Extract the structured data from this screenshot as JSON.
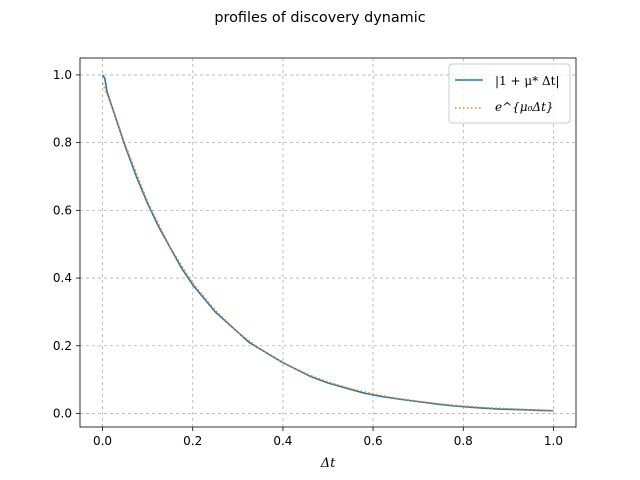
{
  "chart_data": {
    "type": "line",
    "title": "profiles of discovery dynamic",
    "xlabel": "Δt",
    "ylabel": "",
    "xlim": [
      -0.05,
      1.05
    ],
    "ylim": [
      -0.04,
      1.05
    ],
    "xticks": [
      0.0,
      0.2,
      0.4,
      0.6,
      0.8,
      1.0
    ],
    "xtick_labels": [
      "0.0",
      "0.2",
      "0.4",
      "0.6",
      "0.8",
      "1.0"
    ],
    "yticks": [
      0.0,
      0.2,
      0.4,
      0.6,
      0.8,
      1.0
    ],
    "ytick_labels": [
      "0.0",
      "0.2",
      "0.4",
      "0.6",
      "0.8",
      "1.0"
    ],
    "grid": true,
    "grid_style": "dashed",
    "legend_position": "top-right",
    "series": [
      {
        "name": "|1 + μ* Δt|",
        "color": "#1f77b4",
        "style": "solid",
        "x": [
          0.0,
          0.005,
          0.01,
          0.02,
          0.03,
          0.05,
          0.075,
          0.1,
          0.125,
          0.15,
          0.175,
          0.2,
          0.225,
          0.25,
          0.275,
          0.3,
          0.325,
          0.35,
          0.375,
          0.4,
          0.43,
          0.46,
          0.5,
          0.54,
          0.58,
          0.62,
          0.66,
          0.7,
          0.74,
          0.78,
          0.83,
          0.88,
          0.93,
          0.97,
          1.0
        ],
        "y": [
          1.0,
          0.99,
          0.95,
          0.91,
          0.87,
          0.79,
          0.7,
          0.62,
          0.55,
          0.49,
          0.43,
          0.38,
          0.34,
          0.3,
          0.27,
          0.24,
          0.21,
          0.19,
          0.17,
          0.15,
          0.13,
          0.11,
          0.09,
          0.075,
          0.06,
          0.05,
          0.042,
          0.035,
          0.028,
          0.022,
          0.017,
          0.013,
          0.011,
          0.009,
          0.008
        ]
      },
      {
        "name": "e^{μ₀Δt}",
        "color": "#ff7f0e",
        "style": "dotted",
        "x": [
          0.0,
          0.02,
          0.05,
          0.1,
          0.15,
          0.2,
          0.25,
          0.3,
          0.35,
          0.4,
          0.45,
          0.5,
          0.55,
          0.6,
          0.65,
          0.7,
          0.75,
          0.8,
          0.85,
          0.9,
          0.95,
          1.0
        ],
        "y": [
          0.975,
          0.91,
          0.795,
          0.625,
          0.49,
          0.385,
          0.305,
          0.24,
          0.19,
          0.15,
          0.118,
          0.093,
          0.073,
          0.058,
          0.045,
          0.036,
          0.028,
          0.022,
          0.017,
          0.014,
          0.011,
          0.009
        ]
      }
    ]
  }
}
